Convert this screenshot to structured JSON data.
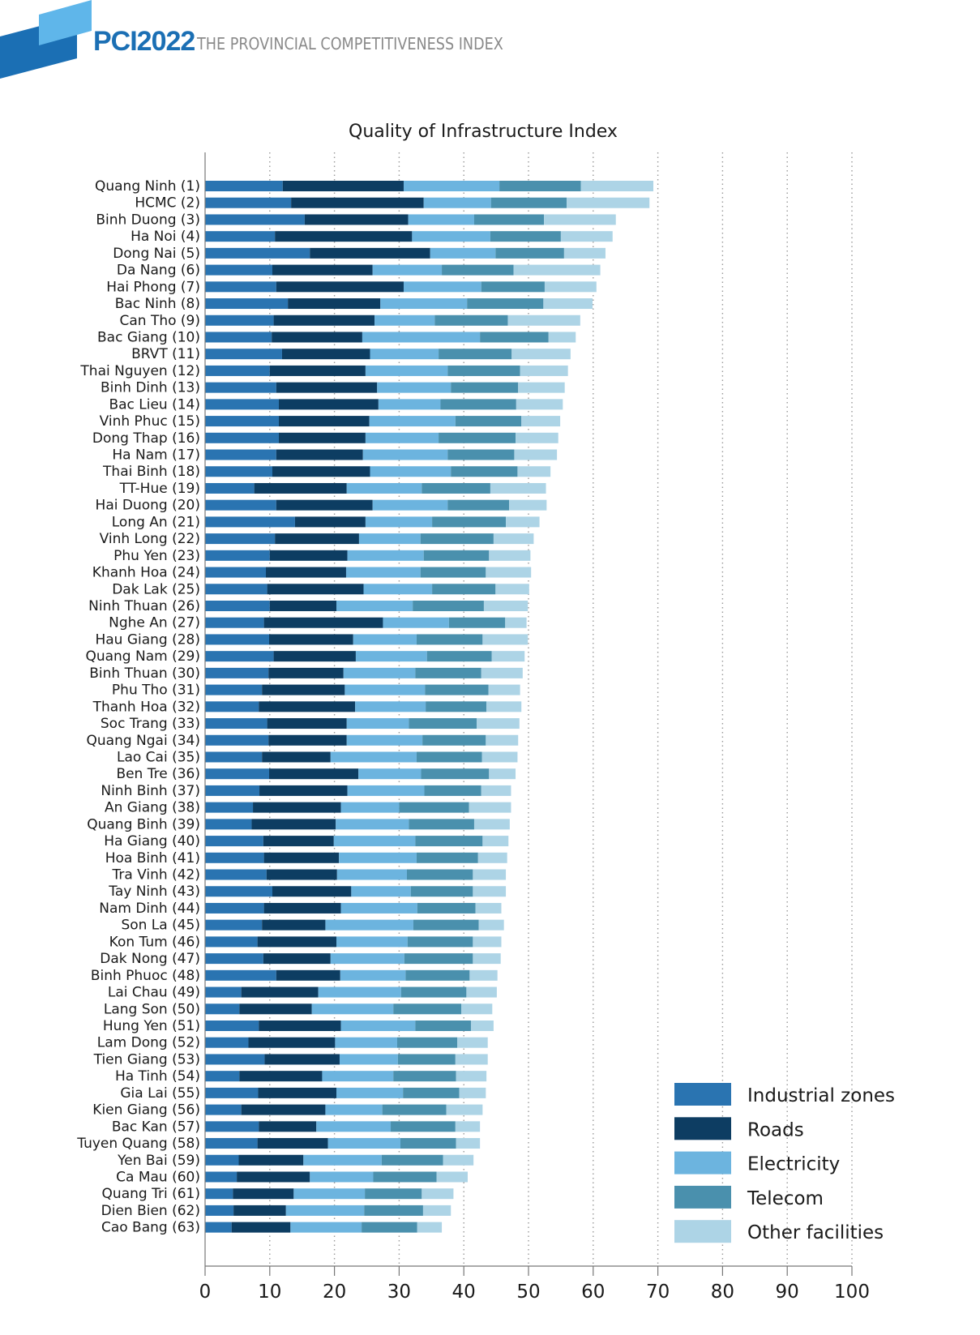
{
  "header": {
    "brand": "PCI2022",
    "subtitle": "THE PROVINCIAL COMPETITIVENESS INDEX"
  },
  "colors": {
    "industrial_zones": "#2a74b1",
    "roads": "#0d3d62",
    "electricity": "#6cb4df",
    "telecom": "#4a90ad",
    "other_facilities": "#add4e6",
    "brand_blue": "#1b6fb4"
  },
  "chart_data": {
    "type": "bar",
    "orientation": "horizontal",
    "stacked": true,
    "title": "Quality of Infrastructure Index",
    "xlim": [
      0,
      100
    ],
    "xticks": [
      0,
      10,
      20,
      30,
      40,
      50,
      60,
      70,
      80,
      90,
      100
    ],
    "grid": "vertical dotted",
    "legend_position": "bottom-right",
    "categories": [
      "Quang Ninh (1)",
      "HCMC (2)",
      "Binh Duong (3)",
      "Ha Noi (4)",
      "Dong Nai (5)",
      "Da Nang (6)",
      "Hai Phong (7)",
      "Bac Ninh (8)",
      "Can Tho (9)",
      "Bac Giang (10)",
      "BRVT (11)",
      "Thai Nguyen (12)",
      "Binh Dinh (13)",
      "Bac Lieu (14)",
      "Vinh Phuc (15)",
      "Dong Thap (16)",
      "Ha Nam (17)",
      "Thai Binh (18)",
      "TT-Hue (19)",
      "Hai Duong (20)",
      "Long An (21)",
      "Vinh Long (22)",
      "Phu Yen (23)",
      "Khanh Hoa (24)",
      "Dak Lak (25)",
      "Ninh Thuan (26)",
      "Nghe An (27)",
      "Hau Giang (28)",
      "Quang Nam (29)",
      "Binh Thuan (30)",
      "Phu Tho (31)",
      "Thanh Hoa (32)",
      "Soc Trang (33)",
      "Quang Ngai (34)",
      "Lao Cai (35)",
      "Ben Tre (36)",
      "Ninh Binh (37)",
      "An Giang (38)",
      "Quang Binh (39)",
      "Ha Giang (40)",
      "Hoa Binh (41)",
      "Tra Vinh (42)",
      "Tay Ninh (43)",
      "Nam Dinh (44)",
      "Son La (45)",
      "Kon Tum (46)",
      "Dak Nong (47)",
      "Binh Phuoc (48)",
      "Lai Chau (49)",
      "Lang Son (50)",
      "Hung Yen (51)",
      "Lam Dong (52)",
      "Tien Giang (53)",
      "Ha Tinh (54)",
      "Gia Lai (55)",
      "Kien Giang (56)",
      "Bac Kan (57)",
      "Tuyen Quang (58)",
      "Yen Bai (59)",
      "Ca Mau (60)",
      "Quang Tri (61)",
      "Dien Bien (62)",
      "Cao Bang (63)"
    ],
    "series": [
      {
        "name": "Industrial zones",
        "color": "#2a74b1",
        "values": [
          12.0,
          13.3,
          15.4,
          10.8,
          16.2,
          10.4,
          11.0,
          12.8,
          10.6,
          10.3,
          11.9,
          10.0,
          11.0,
          11.4,
          11.4,
          11.4,
          11.0,
          10.4,
          7.6,
          11.0,
          13.9,
          10.8,
          10.0,
          9.4,
          9.6,
          10.0,
          9.1,
          9.9,
          10.6,
          9.8,
          8.8,
          8.3,
          9.6,
          9.8,
          8.8,
          9.9,
          8.4,
          7.4,
          7.2,
          9.0,
          9.1,
          9.5,
          10.4,
          9.1,
          8.8,
          8.1,
          9.0,
          11.0,
          5.6,
          5.3,
          8.3,
          6.7,
          9.2,
          5.3,
          8.2,
          5.6,
          8.3,
          8.1,
          5.2,
          4.9,
          4.3,
          4.4,
          4.1
        ]
      },
      {
        "name": "Roads",
        "color": "#0d3d62",
        "values": [
          18.7,
          20.5,
          16.0,
          21.2,
          18.6,
          15.5,
          19.7,
          14.3,
          15.6,
          14.0,
          13.6,
          14.8,
          15.6,
          15.4,
          14.0,
          13.4,
          13.4,
          15.1,
          14.3,
          14.9,
          10.9,
          13.0,
          12.0,
          12.4,
          14.9,
          10.3,
          18.4,
          13.0,
          12.7,
          11.6,
          12.8,
          14.9,
          12.3,
          12.1,
          10.6,
          13.8,
          13.6,
          13.6,
          13.0,
          10.9,
          11.6,
          10.9,
          12.2,
          11.9,
          9.8,
          12.2,
          10.4,
          9.9,
          11.9,
          11.2,
          12.7,
          13.4,
          11.6,
          12.8,
          12.1,
          13.0,
          8.9,
          10.9,
          10.0,
          11.3,
          9.4,
          8.1,
          9.1
        ]
      },
      {
        "name": "Electricity",
        "color": "#6cb4df",
        "values": [
          14.8,
          10.4,
          10.2,
          12.1,
          10.1,
          10.7,
          12.0,
          13.4,
          9.3,
          18.2,
          10.6,
          12.7,
          11.4,
          9.6,
          13.3,
          11.3,
          13.1,
          12.5,
          11.6,
          11.6,
          10.3,
          9.5,
          11.8,
          11.5,
          10.6,
          11.8,
          10.2,
          9.8,
          11.0,
          11.1,
          12.4,
          10.9,
          9.6,
          11.7,
          13.3,
          9.7,
          11.9,
          9.0,
          11.3,
          12.6,
          12.0,
          10.8,
          9.2,
          11.8,
          13.6,
          11.0,
          11.4,
          10.1,
          12.8,
          12.6,
          11.5,
          9.6,
          9.0,
          11.0,
          10.3,
          8.8,
          11.5,
          11.2,
          12.1,
          9.8,
          11.0,
          12.1,
          11.0
        ]
      },
      {
        "name": "Telecom",
        "color": "#4a90ad",
        "values": [
          12.6,
          11.7,
          10.8,
          10.9,
          10.6,
          11.1,
          9.8,
          11.8,
          11.3,
          10.6,
          11.3,
          11.2,
          10.4,
          11.7,
          10.2,
          11.9,
          10.3,
          10.3,
          10.6,
          9.5,
          11.4,
          11.3,
          10.1,
          10.1,
          9.8,
          11.0,
          8.7,
          10.2,
          10.0,
          10.2,
          9.8,
          9.4,
          10.5,
          9.8,
          10.1,
          10.5,
          8.8,
          10.8,
          10.1,
          10.4,
          9.5,
          10.2,
          9.6,
          9.0,
          10.1,
          10.1,
          10.6,
          9.9,
          10.1,
          10.5,
          8.6,
          9.3,
          8.9,
          9.7,
          8.7,
          9.9,
          10.0,
          8.6,
          9.5,
          9.8,
          8.8,
          9.1,
          8.6
        ]
      },
      {
        "name": "Other facilities",
        "color": "#add4e6",
        "values": [
          11.2,
          12.8,
          11.1,
          8.0,
          6.4,
          13.4,
          8.0,
          7.6,
          11.2,
          4.2,
          9.1,
          7.4,
          7.2,
          7.2,
          6.0,
          6.6,
          6.6,
          5.1,
          8.6,
          5.8,
          5.2,
          6.2,
          6.4,
          7.0,
          5.2,
          6.8,
          3.3,
          7.0,
          5.1,
          6.4,
          4.9,
          5.4,
          6.6,
          5.0,
          5.5,
          4.1,
          4.6,
          6.5,
          5.5,
          4.0,
          4.5,
          5.1,
          5.1,
          4.0,
          3.9,
          4.4,
          4.3,
          4.3,
          4.7,
          4.8,
          3.5,
          4.7,
          5.0,
          4.7,
          4.1,
          5.6,
          3.8,
          3.7,
          4.7,
          4.8,
          4.9,
          4.3,
          3.8
        ]
      }
    ]
  }
}
